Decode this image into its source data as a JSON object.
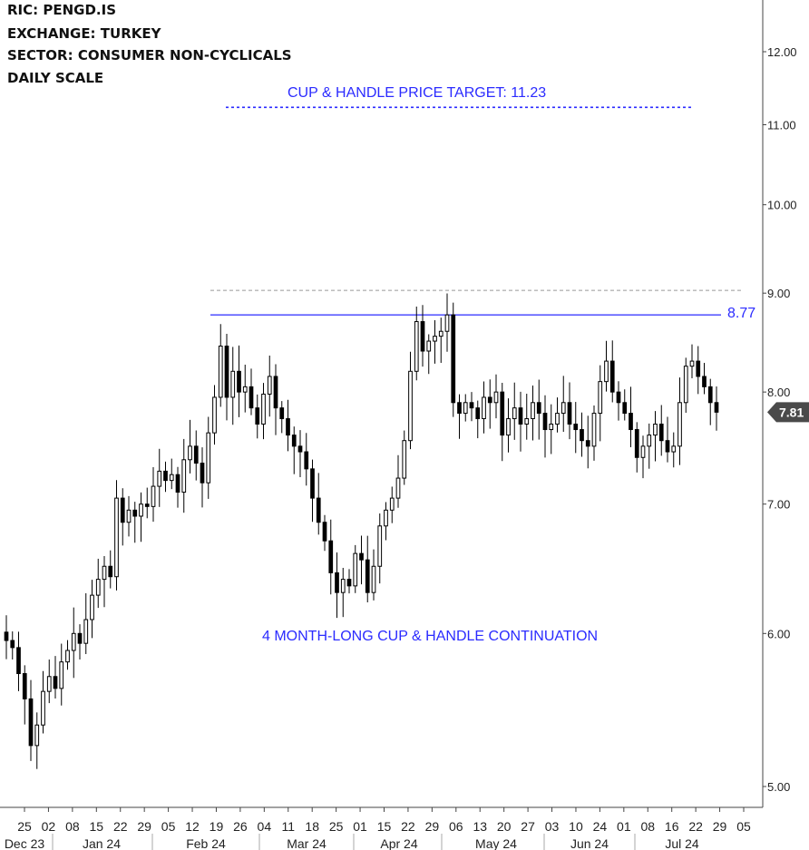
{
  "header": {
    "ric": "RIC:  PENGD.IS",
    "exchange": "EXCHANGE:  TURKEY",
    "sector": "SECTOR:  CONSUMER NON-CYCLICALS",
    "scale": "DAILY SCALE"
  },
  "annotations": {
    "target_text": "CUP & HANDLE PRICE TARGET: 11.23",
    "pattern_text": "4 MONTH-LONG CUP & HANDLE CONTINUATION",
    "resistance_label": "8.77"
  },
  "colors": {
    "annotation_blue": "#2b2bff",
    "candle": "#000000",
    "grid_dashed": "#999999",
    "last_price_bg": "#4a4a4a"
  },
  "chart_data": {
    "type": "candlestick",
    "scale": "log",
    "ylim": [
      4.8,
      12.9
    ],
    "yticks": [
      "12.00",
      "11.00",
      "10.00",
      "9.00",
      "8.00",
      "7.00",
      "6.00",
      "5.00"
    ],
    "ytick_values": [
      12,
      11,
      10,
      9,
      8,
      7,
      6,
      5
    ],
    "xticks": [
      "25",
      "02",
      "08",
      "15",
      "22",
      "29",
      "05",
      "12",
      "19",
      "26",
      "04",
      "11",
      "18",
      "25",
      "01",
      "15",
      "22",
      "29",
      "06",
      "13",
      "20",
      "27",
      "03",
      "10",
      "24",
      "01",
      "08",
      "16",
      "22",
      "29",
      "05"
    ],
    "months": [
      "Dec 23",
      "Jan 24",
      "Feb 24",
      "Mar 24",
      "Apr 24",
      "May 24",
      "Jun 24",
      "Jul 24"
    ],
    "resistance": 8.77,
    "target": 11.23,
    "upper_dashed_level": 9.03,
    "last_price": 7.81,
    "last_price_label": "7.81",
    "closes": [
      5.95,
      5.9,
      5.72,
      5.55,
      5.25,
      5.38,
      5.6,
      5.7,
      5.62,
      5.8,
      5.88,
      6.0,
      5.93,
      6.1,
      6.28,
      6.4,
      6.5,
      6.42,
      7.05,
      6.85,
      6.95,
      6.9,
      7.0,
      6.98,
      7.15,
      7.28,
      7.2,
      7.25,
      7.1,
      7.38,
      7.5,
      7.35,
      7.18,
      7.62,
      7.95,
      8.45,
      7.95,
      8.2,
      8.0,
      8.05,
      7.85,
      7.7,
      7.98,
      8.15,
      7.85,
      7.75,
      7.6,
      7.5,
      7.45,
      7.3,
      7.05,
      6.85,
      6.7,
      6.45,
      6.3,
      6.4,
      6.35,
      6.6,
      6.55,
      6.3,
      6.5,
      6.82,
      6.95,
      7.05,
      7.22,
      7.55,
      8.2,
      8.7,
      8.4,
      8.5,
      8.55,
      8.6,
      8.77,
      7.9,
      7.8,
      7.9,
      7.85,
      7.75,
      7.95,
      7.9,
      8.0,
      7.6,
      7.75,
      7.85,
      7.7,
      7.75,
      7.9,
      7.8,
      7.65,
      7.7,
      7.8,
      7.9,
      7.7,
      7.65,
      7.55,
      7.5,
      7.8,
      8.1,
      8.3,
      8.0,
      7.9,
      7.8,
      7.65,
      7.4,
      7.5,
      7.6,
      7.7,
      7.55,
      7.45,
      7.5,
      7.9,
      8.25,
      8.3,
      8.15,
      8.05,
      7.9,
      7.81
    ]
  }
}
